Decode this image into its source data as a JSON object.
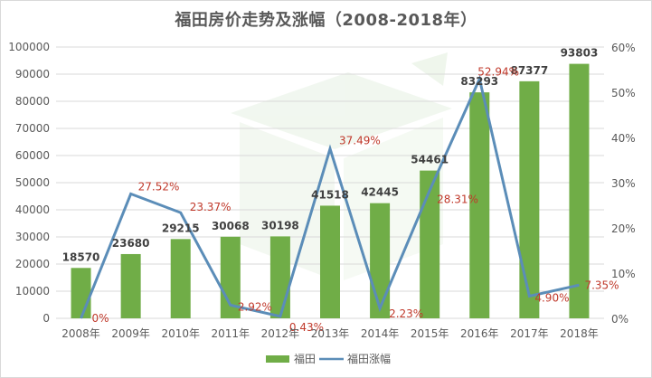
{
  "title": "福田房价走势及涨幅（2008-2018年）",
  "colors": {
    "bar": "#70ad47",
    "line": "#5b8db8",
    "pct_label": "#c0392b",
    "value_label": "#404040",
    "grid": "#d9d9d9",
    "axis_text": "#595959"
  },
  "legend": {
    "bar_label": "福田",
    "line_label": "福田涨幅"
  },
  "axes": {
    "left_ticks": [
      "0",
      "10000",
      "20000",
      "30000",
      "40000",
      "50000",
      "60000",
      "70000",
      "80000",
      "90000",
      "100000"
    ],
    "right_ticks": [
      "0%",
      "10%",
      "20%",
      "30%",
      "40%",
      "50%",
      "60%"
    ]
  },
  "chart_data": {
    "type": "bar+line",
    "title": "福田房价走势及涨幅（2008-2018年）",
    "categories": [
      "2008年",
      "2009年",
      "2010年",
      "2011年",
      "2012年",
      "2013年",
      "2014年",
      "2015年",
      "2016年",
      "2017年",
      "2018年"
    ],
    "series": [
      {
        "name": "福田",
        "type": "bar",
        "axis": "left",
        "values": [
          18570,
          23680,
          29215,
          30068,
          30198,
          41518,
          42445,
          54461,
          83293,
          87377,
          93803
        ],
        "labels": [
          "18570",
          "23680",
          "29215",
          "30068",
          "30198",
          "41518",
          "42445",
          "54461",
          "83293",
          "87377",
          "93803"
        ]
      },
      {
        "name": "福田涨幅",
        "type": "line",
        "axis": "right",
        "values": [
          0,
          27.52,
          23.37,
          2.92,
          0.43,
          37.49,
          2.23,
          28.31,
          52.94,
          4.9,
          7.35
        ],
        "labels": [
          "0%",
          "27.52%",
          "23.37%",
          "2.92%",
          "0.43%",
          "37.49%",
          "2.23%",
          "28.31%",
          "52.94%",
          "4.90%",
          "7.35%"
        ]
      }
    ],
    "ylim_left": [
      0,
      100000
    ],
    "ylim_right": [
      0,
      60
    ],
    "ylabel_left": "",
    "ylabel_right": "",
    "xlabel": "",
    "grid": true,
    "legend_position": "bottom"
  }
}
